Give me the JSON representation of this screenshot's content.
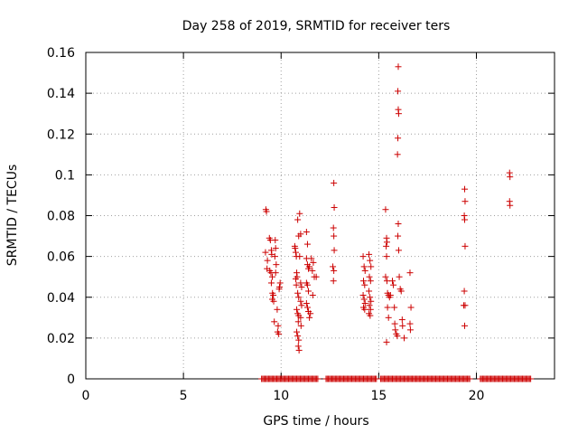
{
  "chart_data": {
    "type": "scatter",
    "title": "Day 258 of 2019, SRMTID for receiver ters",
    "xlabel": "GPS time / hours",
    "ylabel": "SRMTID / TECUs",
    "xlim": [
      0,
      24
    ],
    "ylim": [
      0,
      0.16
    ],
    "xticks": [
      0,
      5,
      10,
      15,
      20
    ],
    "yticks": [
      0,
      0.02,
      0.04,
      0.06,
      0.08,
      0.1,
      0.12,
      0.14,
      0.16
    ],
    "xtick_labels": [
      "0",
      "5",
      "10",
      "15",
      "20"
    ],
    "ytick_labels": [
      "0",
      "0.02",
      "0.04",
      "0.06",
      "0.08",
      "0.1",
      "0.12",
      "0.14",
      "0.16"
    ],
    "grid": true,
    "marker": "+",
    "color": "#cc0000",
    "series": [
      {
        "name": "SRMTID",
        "points": [
          [
            9.22,
            0.083
          ],
          [
            9.25,
            0.082
          ],
          [
            9.2,
            0.062
          ],
          [
            9.28,
            0.054
          ],
          [
            9.3,
            0.058
          ],
          [
            9.4,
            0.069
          ],
          [
            9.45,
            0.068
          ],
          [
            9.5,
            0.063
          ],
          [
            9.52,
            0.061
          ],
          [
            9.42,
            0.053
          ],
          [
            9.48,
            0.052
          ],
          [
            9.55,
            0.05
          ],
          [
            9.5,
            0.047
          ],
          [
            9.56,
            0.042
          ],
          [
            9.6,
            0.041
          ],
          [
            9.55,
            0.039
          ],
          [
            9.62,
            0.038
          ],
          [
            9.7,
            0.068
          ],
          [
            9.72,
            0.064
          ],
          [
            9.68,
            0.06
          ],
          [
            9.75,
            0.056
          ],
          [
            9.72,
            0.052
          ],
          [
            9.65,
            0.028
          ],
          [
            9.8,
            0.034
          ],
          [
            9.85,
            0.026
          ],
          [
            9.82,
            0.023
          ],
          [
            9.88,
            0.022
          ],
          [
            9.9,
            0.044
          ],
          [
            9.95,
            0.047
          ],
          [
            9.92,
            0.045
          ],
          [
            10.7,
            0.065
          ],
          [
            10.72,
            0.064
          ],
          [
            10.75,
            0.062
          ],
          [
            10.78,
            0.06
          ],
          [
            10.8,
            0.052
          ],
          [
            10.82,
            0.05
          ],
          [
            10.75,
            0.049
          ],
          [
            10.78,
            0.046
          ],
          [
            10.85,
            0.042
          ],
          [
            10.9,
            0.04
          ],
          [
            10.8,
            0.034
          ],
          [
            10.85,
            0.032
          ],
          [
            10.88,
            0.028
          ],
          [
            10.8,
            0.023
          ],
          [
            10.85,
            0.021
          ],
          [
            10.9,
            0.019
          ],
          [
            10.88,
            0.016
          ],
          [
            10.92,
            0.014
          ],
          [
            10.85,
            0.078
          ],
          [
            10.95,
            0.081
          ],
          [
            10.9,
            0.07
          ],
          [
            11.0,
            0.071
          ],
          [
            10.95,
            0.06
          ],
          [
            11.0,
            0.047
          ],
          [
            11.05,
            0.045
          ],
          [
            11.0,
            0.038
          ],
          [
            11.05,
            0.036
          ],
          [
            11.0,
            0.03
          ],
          [
            11.02,
            0.026
          ],
          [
            10.9,
            0.031
          ],
          [
            11.3,
            0.072
          ],
          [
            11.35,
            0.066
          ],
          [
            11.3,
            0.059
          ],
          [
            11.35,
            0.056
          ],
          [
            11.4,
            0.054
          ],
          [
            11.45,
            0.055
          ],
          [
            11.3,
            0.047
          ],
          [
            11.35,
            0.046
          ],
          [
            11.4,
            0.043
          ],
          [
            11.3,
            0.037
          ],
          [
            11.35,
            0.035
          ],
          [
            11.4,
            0.033
          ],
          [
            11.45,
            0.03
          ],
          [
            11.5,
            0.032
          ],
          [
            11.55,
            0.059
          ],
          [
            11.6,
            0.053
          ],
          [
            11.65,
            0.057
          ],
          [
            11.7,
            0.05
          ],
          [
            11.62,
            0.041
          ],
          [
            11.8,
            0.05
          ],
          [
            12.7,
            0.096
          ],
          [
            12.72,
            0.084
          ],
          [
            12.68,
            0.074
          ],
          [
            12.7,
            0.07
          ],
          [
            12.72,
            0.063
          ],
          [
            12.65,
            0.055
          ],
          [
            12.7,
            0.053
          ],
          [
            12.68,
            0.048
          ],
          [
            14.2,
            0.06
          ],
          [
            14.25,
            0.055
          ],
          [
            14.3,
            0.053
          ],
          [
            14.22,
            0.048
          ],
          [
            14.28,
            0.046
          ],
          [
            14.2,
            0.041
          ],
          [
            14.25,
            0.039
          ],
          [
            14.3,
            0.037
          ],
          [
            14.22,
            0.035
          ],
          [
            14.28,
            0.034
          ],
          [
            14.5,
            0.061
          ],
          [
            14.55,
            0.058
          ],
          [
            14.6,
            0.055
          ],
          [
            14.52,
            0.05
          ],
          [
            14.58,
            0.048
          ],
          [
            14.5,
            0.043
          ],
          [
            14.55,
            0.04
          ],
          [
            14.6,
            0.038
          ],
          [
            14.52,
            0.036
          ],
          [
            14.58,
            0.034
          ],
          [
            14.5,
            0.032
          ],
          [
            14.56,
            0.031
          ],
          [
            15.35,
            0.083
          ],
          [
            15.4,
            0.069
          ],
          [
            15.42,
            0.067
          ],
          [
            15.38,
            0.065
          ],
          [
            15.4,
            0.06
          ],
          [
            15.35,
            0.05
          ],
          [
            15.42,
            0.048
          ],
          [
            15.45,
            0.042
          ],
          [
            15.5,
            0.041
          ],
          [
            15.55,
            0.04
          ],
          [
            15.6,
            0.041
          ],
          [
            15.45,
            0.035
          ],
          [
            15.5,
            0.03
          ],
          [
            15.4,
            0.018
          ],
          [
            15.7,
            0.048
          ],
          [
            15.75,
            0.046
          ],
          [
            15.8,
            0.035
          ],
          [
            15.82,
            0.027
          ],
          [
            15.85,
            0.024
          ],
          [
            15.9,
            0.022
          ],
          [
            15.95,
            0.021
          ],
          [
            16.0,
            0.153
          ],
          [
            15.98,
            0.141
          ],
          [
            16.0,
            0.132
          ],
          [
            16.02,
            0.13
          ],
          [
            15.98,
            0.118
          ],
          [
            15.96,
            0.11
          ],
          [
            16.0,
            0.076
          ],
          [
            15.98,
            0.07
          ],
          [
            16.02,
            0.063
          ],
          [
            16.05,
            0.05
          ],
          [
            16.1,
            0.044
          ],
          [
            16.15,
            0.043
          ],
          [
            16.2,
            0.029
          ],
          [
            16.22,
            0.026
          ],
          [
            16.3,
            0.02
          ],
          [
            16.6,
            0.052
          ],
          [
            16.65,
            0.035
          ],
          [
            16.6,
            0.027
          ],
          [
            16.62,
            0.024
          ],
          [
            19.4,
            0.093
          ],
          [
            19.42,
            0.087
          ],
          [
            19.38,
            0.08
          ],
          [
            19.4,
            0.078
          ],
          [
            19.42,
            0.065
          ],
          [
            19.38,
            0.043
          ],
          [
            19.35,
            0.036
          ],
          [
            19.42,
            0.036
          ],
          [
            19.4,
            0.026
          ],
          [
            21.7,
            0.101
          ],
          [
            21.72,
            0.099
          ],
          [
            21.7,
            0.087
          ],
          [
            21.72,
            0.085
          ]
        ],
        "zero_segments": [
          [
            9.0,
            11.9
          ],
          [
            12.3,
            14.9
          ],
          [
            15.1,
            19.7
          ],
          [
            20.2,
            22.8
          ]
        ]
      }
    ]
  }
}
